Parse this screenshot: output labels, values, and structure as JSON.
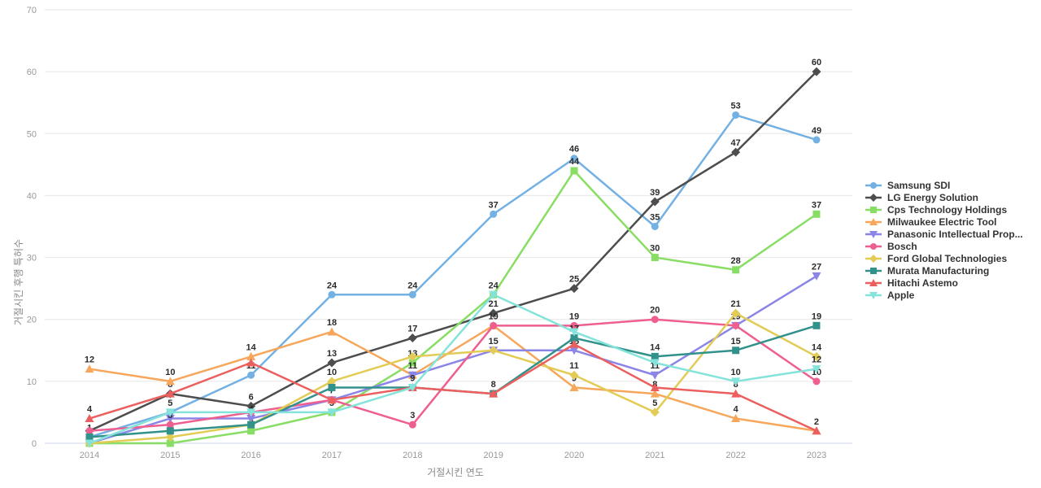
{
  "chart_data": {
    "type": "line",
    "title": "",
    "xlabel": "거절시킨 연도",
    "ylabel": "거절시킨 후행 특허수",
    "x": [
      2014,
      2015,
      2016,
      2017,
      2018,
      2019,
      2020,
      2021,
      2022,
      2023
    ],
    "ylim": [
      0,
      70
    ],
    "ytick_step": 10,
    "grid": true,
    "legend_position": "right",
    "label_color": "#2b2b2b",
    "tick_color": "#999999",
    "grid_color": "#e6e6e6",
    "axis_line_color": "#ccd6eb",
    "series": [
      {
        "name": "Samsung SDI",
        "color": "#73b0e3",
        "marker": "circle",
        "values": [
          1,
          5,
          11,
          24,
          24,
          37,
          46,
          35,
          53,
          49
        ]
      },
      {
        "name": "LG Energy Solution",
        "color": "#4d4d4d",
        "marker": "diamond",
        "values": [
          2,
          8,
          6,
          13,
          17,
          21,
          25,
          39,
          47,
          60
        ]
      },
      {
        "name": "Cps Technology Holdings",
        "color": "#88de64",
        "marker": "square",
        "values": [
          0,
          0,
          2,
          5,
          13,
          24,
          44,
          30,
          28,
          37
        ]
      },
      {
        "name": "Milwaukee Electric Tool",
        "color": "#f6a75b",
        "marker": "triangle-up",
        "values": [
          12,
          10,
          14,
          18,
          11,
          19,
          9,
          8,
          4,
          2
        ]
      },
      {
        "name": "Panasonic Intellectual Prop...",
        "color": "#8b85e8",
        "marker": "triangle-down",
        "values": [
          0,
          4,
          4,
          7,
          11,
          15,
          15,
          11,
          19,
          27
        ]
      },
      {
        "name": "Bosch",
        "color": "#ee5f8f",
        "marker": "circle",
        "values": [
          2,
          3,
          5,
          7,
          3,
          19,
          19,
          20,
          19,
          10
        ]
      },
      {
        "name": "Ford Global Technologies",
        "color": "#e3cc55",
        "marker": "diamond",
        "values": [
          0,
          1,
          3,
          10,
          14,
          15,
          11,
          5,
          21,
          14
        ]
      },
      {
        "name": "Murata Manufacturing",
        "color": "#33918c",
        "marker": "square",
        "values": [
          1,
          2,
          3,
          9,
          9,
          8,
          17,
          14,
          15,
          19
        ]
      },
      {
        "name": "Hitachi Astemo",
        "color": "#ec5f5f",
        "marker": "triangle-up",
        "values": [
          4,
          8,
          13,
          7,
          9,
          8,
          16,
          9,
          8,
          2
        ]
      },
      {
        "name": "Apple",
        "color": "#84e3da",
        "marker": "triangle-down",
        "values": [
          0,
          5,
          5,
          5,
          9,
          24,
          18,
          13,
          10,
          12
        ]
      }
    ]
  }
}
